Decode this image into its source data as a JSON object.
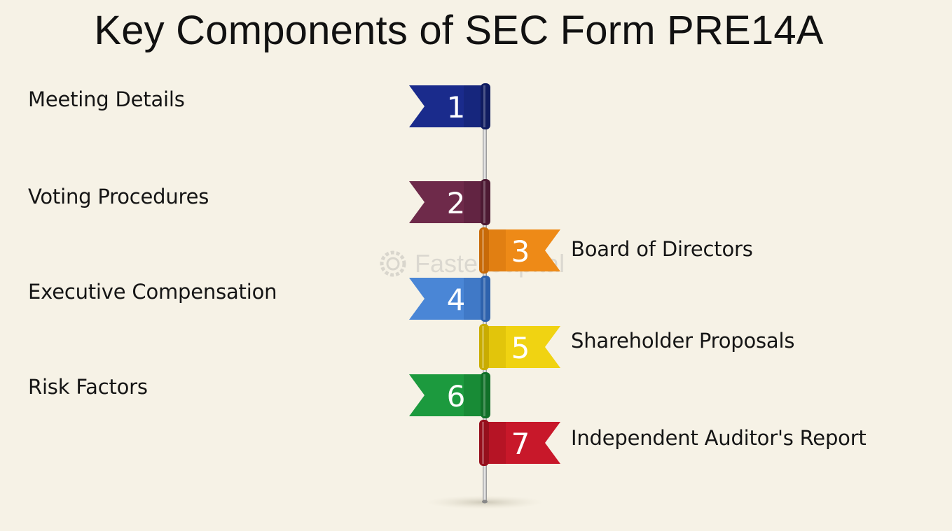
{
  "title": "Key Components of SEC Form PRE14A",
  "watermark": "FasterCapital",
  "items": [
    {
      "number": "1",
      "label": "Meeting Details",
      "side": "left",
      "color": "#1a2b8c",
      "dark": "#101c60"
    },
    {
      "number": "2",
      "label": "Voting Procedures",
      "side": "left",
      "color": "#6e2a4a",
      "dark": "#4d1a33"
    },
    {
      "number": "3",
      "label": "Board of Directors",
      "side": "right",
      "color": "#ee8a17",
      "dark": "#c86a08"
    },
    {
      "number": "4",
      "label": "Executive Compensation",
      "side": "left",
      "color": "#4a86d6",
      "dark": "#2e62ad"
    },
    {
      "number": "5",
      "label": "Shareholder Proposals",
      "side": "right",
      "color": "#f0d312",
      "dark": "#c9ac00"
    },
    {
      "number": "6",
      "label": "Risk Factors",
      "side": "left",
      "color": "#1c9a3e",
      "dark": "#117029"
    },
    {
      "number": "7",
      "label": "Independent Auditor's Report",
      "side": "right",
      "color": "#c8182a",
      "dark": "#960f1c"
    }
  ]
}
